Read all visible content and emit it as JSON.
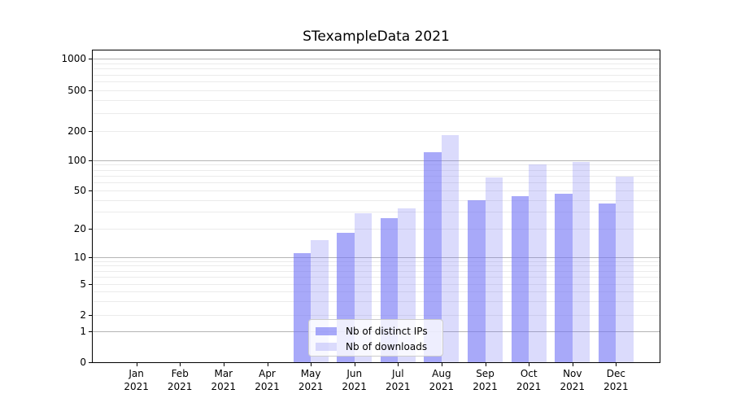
{
  "chart_data": {
    "type": "bar",
    "title": "STexampleData 2021",
    "categories": [
      "Jan 2021",
      "Feb 2021",
      "Mar 2021",
      "Apr 2021",
      "May 2021",
      "Jun 2021",
      "Jul 2021",
      "Aug 2021",
      "Sep 2021",
      "Oct 2021",
      "Nov 2021",
      "Dec 2021"
    ],
    "series": [
      {
        "name": "Nb of distinct IPs",
        "color": "rgba(115,117,245,0.62)",
        "values": [
          0,
          0,
          0,
          0,
          11,
          18,
          26,
          120,
          40,
          44,
          47,
          37
        ]
      },
      {
        "name": "Nb of downloads",
        "color": "rgba(115,117,245,0.26)",
        "values": [
          0,
          0,
          0,
          0,
          15,
          29,
          33,
          180,
          67,
          90,
          95,
          69
        ]
      }
    ],
    "y_ticks": [
      0,
      1,
      2,
      5,
      10,
      20,
      50,
      100,
      200,
      500,
      1000
    ],
    "y_scale": "symlog",
    "ylim": [
      0,
      1250
    ],
    "grid": true,
    "legend_position": "lower center",
    "colors": {
      "bar_base": "#7375f5",
      "major_grid": "#b5b5b5",
      "minor_grid": "#ebebeb",
      "axis": "#000000"
    }
  }
}
